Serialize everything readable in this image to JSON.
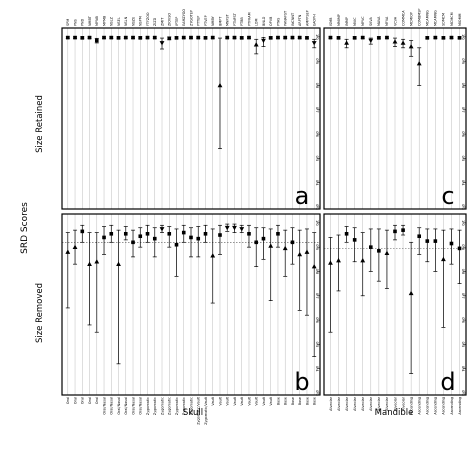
{
  "figure": {
    "ylabel": "SRD Scores",
    "row_labels": [
      "Size Retained",
      "Size Removed"
    ],
    "col_labels": [
      "Skull",
      "Mandible"
    ],
    "colors": {
      "frame": "#000000",
      "grid": "#bdbdbd",
      "refline": "#555555",
      "marker": "#000000"
    }
  },
  "chart_data": [
    {
      "type": "scatter",
      "panel": "a",
      "row": "Size Retained",
      "group": "Skull",
      "ylim": [
        0.3,
        1.02
      ],
      "yticks": [
        "0.3",
        "0.4",
        "0.5",
        "0.6",
        "0.7",
        "0.8",
        "0.9",
        "1.0"
      ],
      "xticks_top": [
        "SPM",
        "PNS",
        "PND",
        "NMBT",
        "MPNB",
        "MPMB",
        "NSLZ",
        "NSEL",
        "NSLN",
        "NSZE",
        "NSPM",
        "FTFZOO",
        "ZIZD",
        "ZMIT",
        "ZIOVSO",
        "IPTEP",
        "EAMZYGO",
        "ZYGOTEP",
        "PTTEP",
        "PTVEP",
        "NMBY",
        "BMPT",
        "MNFST",
        "PTNFST",
        "PTBB",
        "PTFRAM",
        "LDM",
        "BNLD",
        "OPVB",
        "PTAS",
        "PANAFST",
        "INCNNT",
        "ARPTN",
        "AMPPSEP",
        "EAOPH"
      ],
      "x": [
        1,
        2,
        3,
        4,
        5,
        6,
        7,
        8,
        9,
        10,
        11,
        12,
        13,
        14,
        15,
        16,
        17,
        18,
        19,
        20,
        21,
        22,
        23,
        24,
        25,
        26,
        27,
        28,
        29,
        30,
        31,
        32,
        33,
        34,
        35
      ],
      "y": [
        0.997,
        0.997,
        0.996,
        0.997,
        0.985,
        0.997,
        0.997,
        0.996,
        0.997,
        0.997,
        0.996,
        0.997,
        0.997,
        0.975,
        0.994,
        0.996,
        0.997,
        0.997,
        0.997,
        0.996,
        0.997,
        0.8,
        0.997,
        0.997,
        0.996,
        0.997,
        0.968,
        0.985,
        0.996,
        0.997,
        0.997,
        0.997,
        0.997,
        0.996,
        0.975
      ],
      "lower": [
        0.993,
        0.993,
        0.992,
        0.993,
        0.975,
        0.993,
        0.993,
        0.992,
        0.993,
        0.993,
        0.992,
        0.993,
        0.993,
        0.95,
        0.988,
        0.992,
        0.993,
        0.993,
        0.993,
        0.992,
        0.993,
        0.54,
        0.993,
        0.993,
        0.992,
        0.993,
        0.93,
        0.96,
        0.992,
        0.993,
        0.993,
        0.993,
        0.993,
        0.992,
        0.955
      ],
      "upper": [
        1.0,
        1.0,
        1.0,
        1.0,
        0.994,
        1.0,
        1.0,
        1.0,
        1.0,
        1.0,
        1.0,
        1.0,
        1.0,
        0.995,
        1.0,
        1.0,
        1.0,
        1.0,
        1.0,
        1.0,
        1.0,
        0.995,
        1.0,
        1.0,
        1.0,
        1.0,
        0.99,
        0.998,
        1.0,
        1.0,
        1.0,
        1.0,
        1.0,
        1.0,
        0.99
      ],
      "markers": [
        "square",
        "square",
        "square",
        "square",
        "square",
        "square",
        "square",
        "square",
        "square",
        "square",
        "square",
        "square",
        "square",
        "triangle-down",
        "square",
        "square",
        "square",
        "square",
        "square",
        "square",
        "square",
        "triangle",
        "square",
        "square",
        "square",
        "square",
        "triangle",
        "triangle-down",
        "square",
        "square",
        "square",
        "square",
        "square",
        "square",
        "triangle-down"
      ],
      "grid": true
    },
    {
      "type": "scatter",
      "panel": "b",
      "row": "Size Removed",
      "group": "Skull",
      "ylim": [
        0.3,
        1.02
      ],
      "yticks": [
        "0.3",
        "0.4",
        "0.5",
        "0.6",
        "0.7",
        "0.8",
        "0.9",
        "1.0"
      ],
      "reference_y": 0.92,
      "xticks_bottom": [
        "Oral",
        "Oral",
        "Oral",
        "Oral",
        "Oral",
        "Oral/Nasal",
        "Oral/Nasal",
        "Oral/Nasal",
        "Oral/Nasal",
        "Oral/Nasal",
        "Oral/Nasal",
        "Zygomatic",
        "Zygomatic",
        "Zygomatic",
        "Zygomatic",
        "Zygomatic",
        "Zygomatic",
        "Zygomatic",
        "Zygomatic/Vault",
        "Zygomatic/Vault",
        "Vault",
        "Vault",
        "Vault",
        "Vault",
        "Vault",
        "Vault",
        "Vault",
        "Vault",
        "Vault",
        "Base",
        "Base",
        "Base",
        "Base",
        "Base",
        "Base"
      ],
      "x": [
        1,
        2,
        3,
        4,
        5,
        6,
        7,
        8,
        9,
        10,
        11,
        12,
        13,
        14,
        15,
        16,
        17,
        18,
        19,
        20,
        21,
        22,
        23,
        24,
        25,
        26,
        27,
        28,
        29,
        30,
        31,
        32,
        33,
        34,
        35
      ],
      "y": [
        0.88,
        0.9,
        0.965,
        0.83,
        0.84,
        0.94,
        0.955,
        0.83,
        0.955,
        0.92,
        0.945,
        0.955,
        0.935,
        0.975,
        0.955,
        0.91,
        0.96,
        0.94,
        0.935,
        0.955,
        0.865,
        0.95,
        0.98,
        0.98,
        0.975,
        0.955,
        0.92,
        0.935,
        0.905,
        0.955,
        0.895,
        0.92,
        0.87,
        0.88,
        0.82
      ],
      "lower": [
        0.65,
        0.83,
        0.92,
        0.58,
        0.55,
        0.87,
        0.92,
        0.42,
        0.93,
        0.86,
        0.9,
        0.92,
        0.86,
        0.96,
        0.9,
        0.78,
        0.92,
        0.86,
        0.86,
        0.92,
        0.67,
        0.87,
        0.965,
        0.96,
        0.96,
        0.9,
        0.82,
        0.85,
        0.68,
        0.9,
        0.78,
        0.83,
        0.64,
        0.62,
        0.45
      ],
      "upper": [
        0.96,
        0.97,
        0.99,
        0.96,
        0.96,
        0.985,
        0.99,
        0.97,
        0.985,
        0.97,
        0.98,
        0.99,
        0.98,
        0.99,
        0.985,
        0.975,
        0.99,
        0.98,
        0.985,
        0.99,
        0.975,
        0.99,
        0.995,
        0.995,
        0.99,
        0.99,
        0.98,
        0.98,
        0.975,
        0.99,
        0.97,
        0.98,
        0.97,
        0.975,
        0.96
      ],
      "markers": [
        "triangle",
        "triangle",
        "square",
        "triangle",
        "triangle",
        "square",
        "square",
        "triangle",
        "square",
        "square",
        "square",
        "square",
        "square",
        "triangle-down",
        "square",
        "square",
        "square",
        "square",
        "square",
        "square",
        "triangle",
        "square",
        "triangle-down",
        "triangle-down",
        "triangle-down",
        "square",
        "square",
        "square",
        "triangle",
        "square",
        "triangle",
        "square",
        "triangle",
        "triangle",
        "triangle"
      ],
      "grid": true
    },
    {
      "type": "scatter",
      "panel": "c",
      "row": "Size Retained",
      "group": "Mandible",
      "ylim": [
        0.3,
        1.02
      ],
      "yticks": [
        "0.3",
        "0.4",
        "0.5",
        "0.6",
        "0.7",
        "0.8",
        "0.9",
        "1.0"
      ],
      "xticks_top": [
        "ISMB",
        "MMIMP",
        "IMMP",
        "MVIC",
        "MPVC",
        "SKVA",
        "MAVA",
        "MFVA",
        "VCVA",
        "COMMCA",
        "MCMIOP",
        "COMBMSP",
        "MCAMNG",
        "MCAMNG",
        "SDMCM",
        "MCMCM",
        "MIOMM"
      ],
      "x": [
        1,
        2,
        3,
        4,
        5,
        6,
        7,
        8,
        9,
        10,
        11,
        12,
        13,
        14,
        15,
        16,
        17
      ],
      "y": [
        0.997,
        0.996,
        0.975,
        0.996,
        0.997,
        0.985,
        0.996,
        0.997,
        0.98,
        0.975,
        0.96,
        0.89,
        0.996,
        0.997,
        0.996,
        0.997,
        0.996
      ],
      "lower": [
        0.993,
        0.992,
        0.955,
        0.992,
        0.993,
        0.97,
        0.992,
        0.993,
        0.96,
        0.955,
        0.92,
        0.8,
        0.992,
        0.993,
        0.992,
        0.993,
        0.992
      ],
      "upper": [
        1.0,
        1.0,
        0.99,
        1.0,
        1.0,
        0.995,
        1.0,
        1.0,
        0.995,
        0.99,
        0.985,
        0.955,
        1.0,
        1.0,
        1.0,
        1.0,
        1.0
      ],
      "markers": [
        "square",
        "square",
        "triangle",
        "square",
        "square",
        "triangle-down",
        "square",
        "square",
        "triangle",
        "triangle",
        "triangle",
        "triangle",
        "square",
        "square",
        "square",
        "square",
        "square"
      ],
      "grid": true
    },
    {
      "type": "scatter",
      "panel": "d",
      "row": "Size Removed",
      "group": "Mandible",
      "ylim": [
        0.3,
        1.02
      ],
      "yticks": [
        "0.3",
        "0.4",
        "0.5",
        "0.6",
        "0.7",
        "0.8",
        "0.9",
        "1.0"
      ],
      "reference_y": 0.895,
      "xticks_bottom": [
        "Alveolar",
        "Alveolar",
        "Alveolar",
        "Alveolar",
        "Alveolar",
        "Alveolar",
        "Alveolar",
        "Alveolar",
        "Alveolar",
        "Alveolar",
        "Ascending",
        "Ascending",
        "Ascending",
        "Ascending",
        "Ascending",
        "Ascending",
        "Ascending"
      ],
      "x": [
        1,
        2,
        3,
        4,
        5,
        6,
        7,
        8,
        9,
        10,
        11,
        12,
        13,
        14,
        15,
        16,
        17
      ],
      "y": [
        0.835,
        0.845,
        0.955,
        0.93,
        0.845,
        0.9,
        0.885,
        0.875,
        0.965,
        0.97,
        0.71,
        0.945,
        0.925,
        0.925,
        0.85,
        0.915,
        0.895
      ],
      "lower": [
        0.55,
        0.72,
        0.92,
        0.84,
        0.7,
        0.8,
        0.76,
        0.73,
        0.93,
        0.95,
        0.38,
        0.87,
        0.84,
        0.8,
        0.57,
        0.83,
        0.75
      ],
      "upper": [
        0.94,
        0.95,
        0.985,
        0.98,
        0.96,
        0.975,
        0.975,
        0.97,
        0.99,
        0.99,
        0.92,
        0.98,
        0.975,
        0.975,
        0.97,
        0.975,
        0.97
      ],
      "markers": [
        "triangle",
        "triangle",
        "square",
        "square",
        "triangle",
        "square",
        "square",
        "triangle",
        "square",
        "square",
        "triangle",
        "square",
        "square",
        "square",
        "triangle",
        "square",
        "square"
      ],
      "grid": true
    }
  ]
}
